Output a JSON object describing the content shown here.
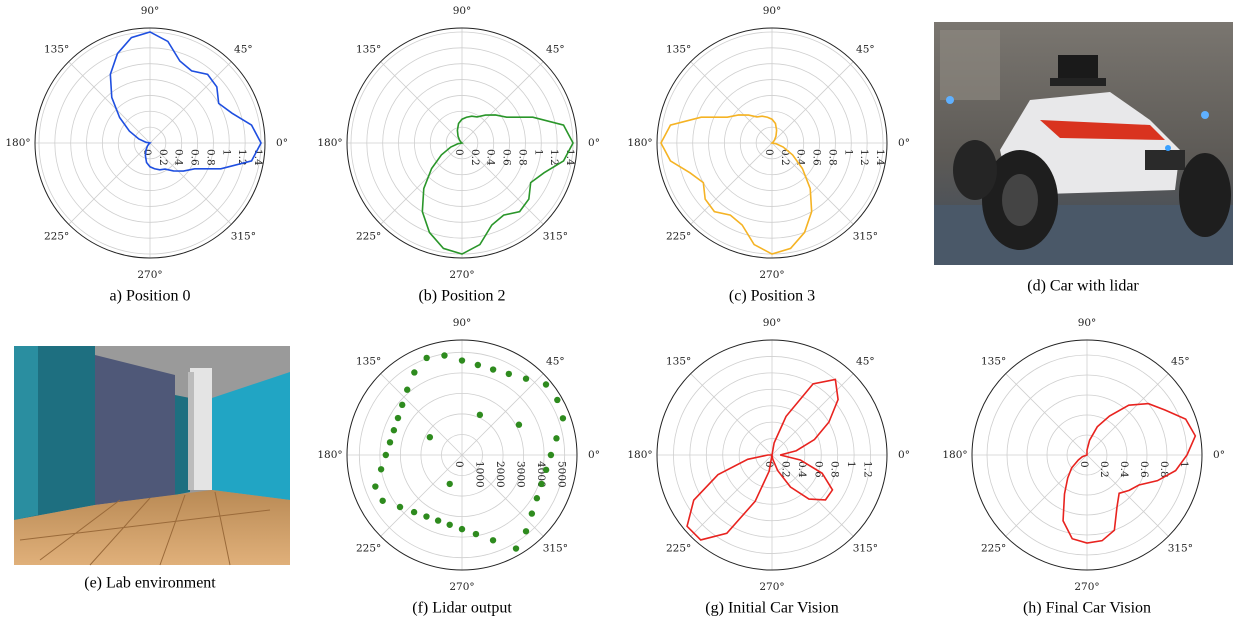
{
  "chart_data": [
    {
      "type": "polar",
      "caption": "a) Position 0",
      "color": "#1f4fe0",
      "rlim": [
        0,
        1.45
      ],
      "rticks": [
        0,
        0.2,
        0.4,
        0.6,
        0.8,
        1,
        1.2,
        1.4
      ],
      "thetaticks": [
        {
          "value": 0,
          "label": "0°"
        },
        {
          "value": 45,
          "label": "45°"
        },
        {
          "value": 90,
          "label": "90°"
        },
        {
          "value": 135,
          "label": "135°"
        },
        {
          "value": 180,
          "label": "180°"
        },
        {
          "value": 225,
          "label": "225°"
        },
        {
          "value": 270,
          "label": "270°"
        },
        {
          "value": 315,
          "label": "315°"
        }
      ],
      "theta": [
        0,
        10,
        20,
        30,
        40,
        50,
        60,
        70,
        80,
        90,
        100,
        110,
        120,
        130,
        140,
        150,
        160,
        170,
        180,
        190,
        200,
        210,
        220,
        230,
        240,
        250,
        260,
        270,
        280,
        290,
        300,
        310,
        320,
        330,
        340,
        350
      ],
      "r": [
        1.4,
        1.3,
        1.1,
        1.0,
        1.1,
        1.13,
        1.05,
        1.1,
        1.3,
        1.4,
        1.35,
        1.2,
        1.0,
        0.75,
        0.5,
        0.3,
        0.15,
        0.05,
        0,
        0,
        0,
        0,
        0.02,
        0.05,
        0.1,
        0.17,
        0.25,
        0.3,
        0.33,
        0.36,
        0.38,
        0.46,
        0.55,
        0.65,
        0.95,
        1.3
      ]
    },
    {
      "type": "polar",
      "caption": "(b) Position 2",
      "color": "#2a962a",
      "rlim": [
        0,
        1.45
      ],
      "rticks": [
        0,
        0.2,
        0.4,
        0.6,
        0.8,
        1,
        1.2,
        1.4
      ],
      "thetaticks": [
        {
          "value": 0,
          "label": "0°"
        },
        {
          "value": 45,
          "label": "45°"
        },
        {
          "value": 90,
          "label": "90°"
        },
        {
          "value": 135,
          "label": "135°"
        },
        {
          "value": 180,
          "label": "180°"
        },
        {
          "value": 225,
          "label": "225°"
        },
        {
          "value": 270,
          "label": "270°"
        },
        {
          "value": 315,
          "label": "315°"
        }
      ],
      "theta": [
        0,
        10,
        20,
        30,
        40,
        50,
        60,
        70,
        80,
        90,
        100,
        110,
        120,
        130,
        140,
        150,
        160,
        170,
        180,
        190,
        200,
        210,
        220,
        230,
        240,
        250,
        260,
        270,
        280,
        290,
        300,
        310,
        320,
        330,
        340,
        350
      ],
      "r": [
        1.4,
        1.3,
        0.95,
        0.65,
        0.55,
        0.46,
        0.38,
        0.36,
        0.33,
        0.3,
        0.25,
        0.17,
        0.1,
        0.05,
        0.02,
        0,
        0,
        0,
        0,
        0.05,
        0.15,
        0.3,
        0.5,
        0.75,
        1.0,
        1.2,
        1.35,
        1.4,
        1.3,
        1.1,
        1.05,
        1.13,
        1.1,
        1.0,
        1.1,
        1.3
      ]
    },
    {
      "type": "polar",
      "caption": "(c) Position 3",
      "color": "#f5b324",
      "rlim": [
        0,
        1.45
      ],
      "rticks": [
        0,
        0.2,
        0.4,
        0.6,
        0.8,
        1,
        1.2,
        1.4
      ],
      "thetaticks": [
        {
          "value": 0,
          "label": "0°"
        },
        {
          "value": 45,
          "label": "45°"
        },
        {
          "value": 90,
          "label": "90°"
        },
        {
          "value": 135,
          "label": "135°"
        },
        {
          "value": 180,
          "label": "180°"
        },
        {
          "value": 225,
          "label": "225°"
        },
        {
          "value": 270,
          "label": "270°"
        },
        {
          "value": 315,
          "label": "315°"
        }
      ],
      "theta": [
        0,
        10,
        20,
        30,
        40,
        50,
        60,
        70,
        80,
        90,
        100,
        110,
        120,
        130,
        140,
        150,
        160,
        170,
        180,
        190,
        200,
        210,
        220,
        230,
        240,
        250,
        260,
        270,
        280,
        290,
        300,
        310,
        320,
        330,
        340,
        350
      ],
      "r": [
        0,
        0,
        0,
        0,
        0.02,
        0.05,
        0.1,
        0.17,
        0.25,
        0.3,
        0.33,
        0.36,
        0.38,
        0.46,
        0.55,
        0.65,
        0.95,
        1.3,
        1.4,
        1.3,
        1.1,
        1.0,
        1.1,
        1.13,
        1.05,
        1.1,
        1.3,
        1.4,
        1.35,
        1.2,
        1.0,
        0.75,
        0.5,
        0.3,
        0.15,
        0.05
      ]
    },
    {
      "type": "polar_scatter",
      "caption": "(f) Lidar output",
      "color": "#2e8b1e",
      "rlim": [
        0,
        5600
      ],
      "rticks": [
        0,
        1000,
        2000,
        3000,
        4000,
        5000
      ],
      "thetaticks": [
        {
          "value": 0,
          "label": "0°"
        },
        {
          "value": 45,
          "label": "45°"
        },
        {
          "value": 90,
          "label": "90°"
        },
        {
          "value": 135,
          "label": "135°"
        },
        {
          "value": 180,
          "label": "180°"
        },
        {
          "value": 225,
          "label": "225°"
        },
        {
          "value": 270,
          "label": "270°"
        },
        {
          "value": 315,
          "label": "315°"
        }
      ],
      "theta": [
        0,
        10,
        20,
        30,
        40,
        50,
        60,
        70,
        80,
        90,
        100,
        110,
        120,
        130,
        140,
        150,
        160,
        170,
        180,
        190,
        200,
        210,
        220,
        230,
        240,
        250,
        260,
        270,
        280,
        290,
        300,
        310,
        320,
        330,
        340,
        350,
        66,
        28,
        151,
        247
      ],
      "r": [
        4330,
        4670,
        5230,
        5360,
        5340,
        4850,
        4560,
        4430,
        4450,
        4600,
        4920,
        5030,
        4640,
        4150,
        3800,
        3600,
        3530,
        3560,
        3710,
        4000,
        4490,
        4460,
        3940,
        3630,
        3460,
        3400,
        3450,
        3610,
        3910,
        4420,
        5260,
        4850,
        4440,
        4210,
        4120,
        4160,
        2140,
        3140,
        1790,
        1530
      ]
    },
    {
      "type": "polar",
      "caption": "(g) Initial Car Vision",
      "color": "#e8231f",
      "rlim": [
        0,
        1.4
      ],
      "rticks": [
        0,
        0.2,
        0.4,
        0.6,
        0.8,
        1,
        1.2
      ],
      "thetaticks": [
        {
          "value": 0,
          "label": "0°"
        },
        {
          "value": 45,
          "label": "45°"
        },
        {
          "value": 90,
          "label": "90°"
        },
        {
          "value": 135,
          "label": "135°"
        },
        {
          "value": 180,
          "label": "180°"
        },
        {
          "value": 225,
          "label": "225°"
        },
        {
          "value": 270,
          "label": "270°"
        },
        {
          "value": 315,
          "label": "315°"
        }
      ],
      "theta": [
        0,
        10,
        20,
        30,
        40,
        50,
        60,
        70,
        80,
        90,
        100,
        110,
        120,
        130,
        140,
        150,
        160,
        170,
        180,
        190,
        200,
        210,
        220,
        230,
        240,
        250,
        260,
        270,
        280,
        290,
        300,
        310,
        320,
        330,
        340,
        350
      ],
      "r": [
        0.1,
        0.3,
        0.55,
        0.8,
        1.05,
        1.2,
        1.0,
        0.5,
        0.15,
        0,
        0,
        0,
        0,
        0,
        0,
        0,
        0,
        0,
        0.05,
        0.3,
        0.7,
        1.1,
        1.35,
        1.35,
        1.1,
        0.6,
        0.2,
        0,
        0.05,
        0.2,
        0.45,
        0.7,
        0.85,
        0.85,
        0.65,
        0.35
      ]
    },
    {
      "type": "polar",
      "caption": "(h) Final Car Vision",
      "color": "#e8231f",
      "rlim": [
        0,
        1.15
      ],
      "rticks": [
        0,
        0.2,
        0.4,
        0.6,
        0.8,
        1
      ],
      "thetaticks": [
        {
          "value": 0,
          "label": "0°"
        },
        {
          "value": 45,
          "label": "45°"
        },
        {
          "value": 90,
          "label": "90°"
        },
        {
          "value": 135,
          "label": "135°"
        },
        {
          "value": 180,
          "label": "180°"
        },
        {
          "value": 225,
          "label": "225°"
        },
        {
          "value": 270,
          "label": "270°"
        },
        {
          "value": 315,
          "label": "315°"
        }
      ],
      "theta": [
        0,
        10,
        20,
        30,
        40,
        50,
        60,
        70,
        80,
        90,
        100,
        110,
        120,
        130,
        140,
        150,
        160,
        170,
        180,
        190,
        200,
        210,
        220,
        230,
        240,
        250,
        260,
        270,
        280,
        290,
        300,
        310,
        320,
        330,
        340,
        350
      ],
      "r": [
        1.0,
        1.1,
        1.05,
        0.9,
        0.8,
        0.65,
        0.45,
        0.3,
        0.15,
        0.05,
        0,
        0,
        0,
        0,
        0,
        0,
        0,
        0,
        0,
        0,
        0.05,
        0.1,
        0.2,
        0.3,
        0.45,
        0.7,
        0.85,
        0.88,
        0.87,
        0.8,
        0.6,
        0.5,
        0.55,
        0.6,
        0.75,
        0.9
      ]
    }
  ],
  "photos": [
    {
      "caption": "(d) Car with lidar"
    },
    {
      "caption": "(e) Lab environment"
    }
  ]
}
